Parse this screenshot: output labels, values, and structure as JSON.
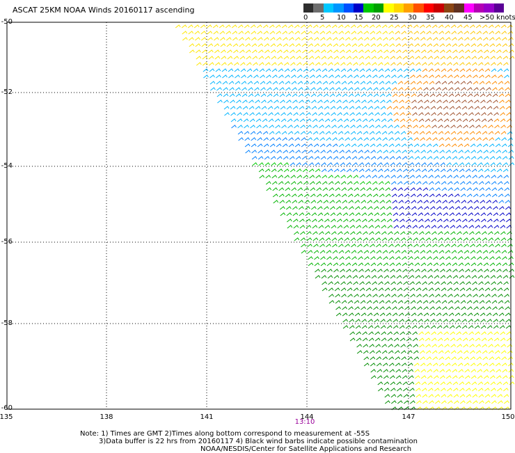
{
  "title": "ASCAT 25KM NOAA Winds 20160117 ascending",
  "legend": {
    "colors": [
      "#2e2e2e",
      "#6e6e6e",
      "#00c8ff",
      "#0096ff",
      "#0050ff",
      "#0000c8",
      "#00c800",
      "#00a000",
      "#ffff00",
      "#ffd700",
      "#ffa000",
      "#ff5000",
      "#ff0000",
      "#c80000",
      "#8b4513",
      "#603020",
      "#ff00ff",
      "#b400b4",
      "#9600c8",
      "#5a0096"
    ],
    "labels": [
      "0",
      "5",
      "10",
      "15",
      "20",
      "25",
      "30",
      "35",
      "40",
      "45",
      ">50 knots"
    ]
  },
  "axes": {
    "y_labels": [
      "-50",
      "-52",
      "-54",
      "-56",
      "-58",
      "-60"
    ],
    "x_labels": [
      "135",
      "138",
      "141",
      "144",
      "147",
      "150"
    ],
    "time_label": "13:10"
  },
  "notes": [
    "Note: 1) Times are GMT 2)Times along bottom correspond to measurement at -55S",
    "3)Data buffer is 22 hrs from 20160117 4) Black wind barbs indicate possible contamination",
    "NOAA/NESDIS/Center for Satellite Applications and Research"
  ]
}
